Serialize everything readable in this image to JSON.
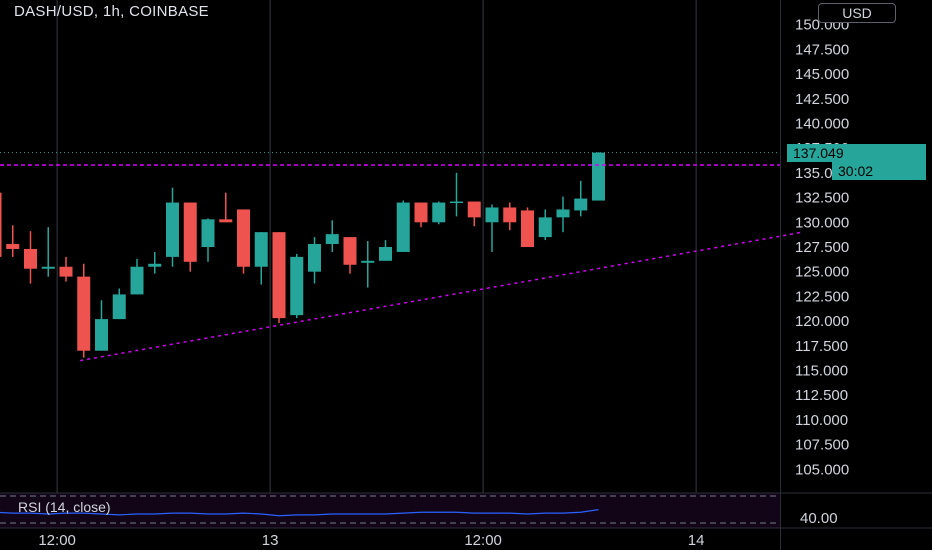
{
  "header": {
    "title": "DASH/USD, 1h, COINBASE",
    "currency_button": "USD"
  },
  "rsi": {
    "label": "RSI (14, close)",
    "axis_label": "40.00"
  },
  "last_price": {
    "value": "137.049",
    "countdown": "30:02"
  },
  "colors": {
    "up": "#26a69a",
    "down": "#ef5350",
    "trendline": "#d500f9",
    "rsi_line": "#2962ff",
    "grid": "#363a45"
  },
  "chart_data": {
    "type": "candlestick",
    "y_ticks": [
      "150.000",
      "147.500",
      "145.000",
      "142.500",
      "140.000",
      "137.500",
      "135.000",
      "132.500",
      "130.000",
      "127.500",
      "125.000",
      "122.500",
      "120.000",
      "117.500",
      "115.000",
      "112.500",
      "110.000",
      "107.500",
      "105.000"
    ],
    "ylim": [
      102.7,
      152.5
    ],
    "x_ticks": [
      {
        "label": "12:00",
        "index": 3.5
      },
      {
        "label": "13",
        "index": 15.5
      },
      {
        "label": "12:00",
        "index": 27.5
      },
      {
        "label": "14",
        "index": 39.5
      }
    ],
    "candles": [
      {
        "o": 133.0,
        "h": 133.0,
        "l": 126.5,
        "c": 126.5
      },
      {
        "o": 127.8,
        "h": 129.7,
        "l": 126.5,
        "c": 127.3
      },
      {
        "o": 127.3,
        "h": 129.1,
        "l": 123.8,
        "c": 125.3
      },
      {
        "o": 125.3,
        "h": 129.5,
        "l": 124.5,
        "c": 125.5
      },
      {
        "o": 125.5,
        "h": 126.5,
        "l": 124.0,
        "c": 124.5
      },
      {
        "o": 124.5,
        "h": 125.8,
        "l": 116.3,
        "c": 117.0
      },
      {
        "o": 117.0,
        "h": 122.1,
        "l": 117.0,
        "c": 120.2
      },
      {
        "o": 120.2,
        "h": 123.3,
        "l": 120.2,
        "c": 122.7
      },
      {
        "o": 122.7,
        "h": 126.3,
        "l": 122.7,
        "c": 125.5
      },
      {
        "o": 125.5,
        "h": 127.0,
        "l": 124.8,
        "c": 125.8
      },
      {
        "o": 126.5,
        "h": 133.5,
        "l": 125.5,
        "c": 132.0
      },
      {
        "o": 132.0,
        "h": 132.0,
        "l": 125.0,
        "c": 126.0
      },
      {
        "o": 127.5,
        "h": 130.4,
        "l": 126.0,
        "c": 130.3
      },
      {
        "o": 130.3,
        "h": 133.0,
        "l": 130.0,
        "c": 130.0
      },
      {
        "o": 131.3,
        "h": 131.3,
        "l": 124.8,
        "c": 125.5
      },
      {
        "o": 125.5,
        "h": 129.0,
        "l": 123.7,
        "c": 129.0
      },
      {
        "o": 129.0,
        "h": 129.0,
        "l": 119.8,
        "c": 120.3
      },
      {
        "o": 120.6,
        "h": 126.8,
        "l": 120.3,
        "c": 126.5
      },
      {
        "o": 125.0,
        "h": 128.5,
        "l": 123.8,
        "c": 127.8
      },
      {
        "o": 127.8,
        "h": 130.2,
        "l": 127.0,
        "c": 128.8
      },
      {
        "o": 128.5,
        "h": 128.5,
        "l": 124.8,
        "c": 125.7
      },
      {
        "o": 125.9,
        "h": 128.1,
        "l": 123.4,
        "c": 126.1
      },
      {
        "o": 126.1,
        "h": 128.2,
        "l": 126.1,
        "c": 127.5
      },
      {
        "o": 127.0,
        "h": 132.2,
        "l": 127.0,
        "c": 132.0
      },
      {
        "o": 132.0,
        "h": 132.0,
        "l": 129.5,
        "c": 130.0
      },
      {
        "o": 130.0,
        "h": 132.1,
        "l": 129.8,
        "c": 132.0
      },
      {
        "o": 132.0,
        "h": 135.0,
        "l": 130.6,
        "c": 132.1
      },
      {
        "o": 132.1,
        "h": 132.1,
        "l": 129.6,
        "c": 130.5
      },
      {
        "o": 130.0,
        "h": 131.8,
        "l": 127.0,
        "c": 131.5
      },
      {
        "o": 131.5,
        "h": 132.0,
        "l": 129.2,
        "c": 130.0
      },
      {
        "o": 131.2,
        "h": 131.5,
        "l": 127.5,
        "c": 127.5
      },
      {
        "o": 128.5,
        "h": 131.3,
        "l": 128.2,
        "c": 130.5
      },
      {
        "o": 130.5,
        "h": 132.6,
        "l": 129.0,
        "c": 131.3
      },
      {
        "o": 131.2,
        "h": 134.2,
        "l": 130.6,
        "c": 132.4
      },
      {
        "o": 132.2,
        "h": 137.1,
        "l": 132.2,
        "c": 137.05
      }
    ],
    "horizontal_line": 135.8,
    "trendline": {
      "from": {
        "index": 4.8,
        "price": 116.0
      },
      "to": {
        "index": 45.5,
        "price": 129.0
      }
    },
    "rsi_values": [
      48,
      47,
      47,
      46,
      47,
      47,
      46,
      45,
      46,
      46,
      47,
      47,
      46,
      46,
      47,
      46,
      44,
      45,
      45,
      46,
      46,
      46,
      46,
      47,
      48,
      48,
      48,
      47,
      47,
      47,
      46,
      47,
      47,
      48,
      51
    ]
  }
}
